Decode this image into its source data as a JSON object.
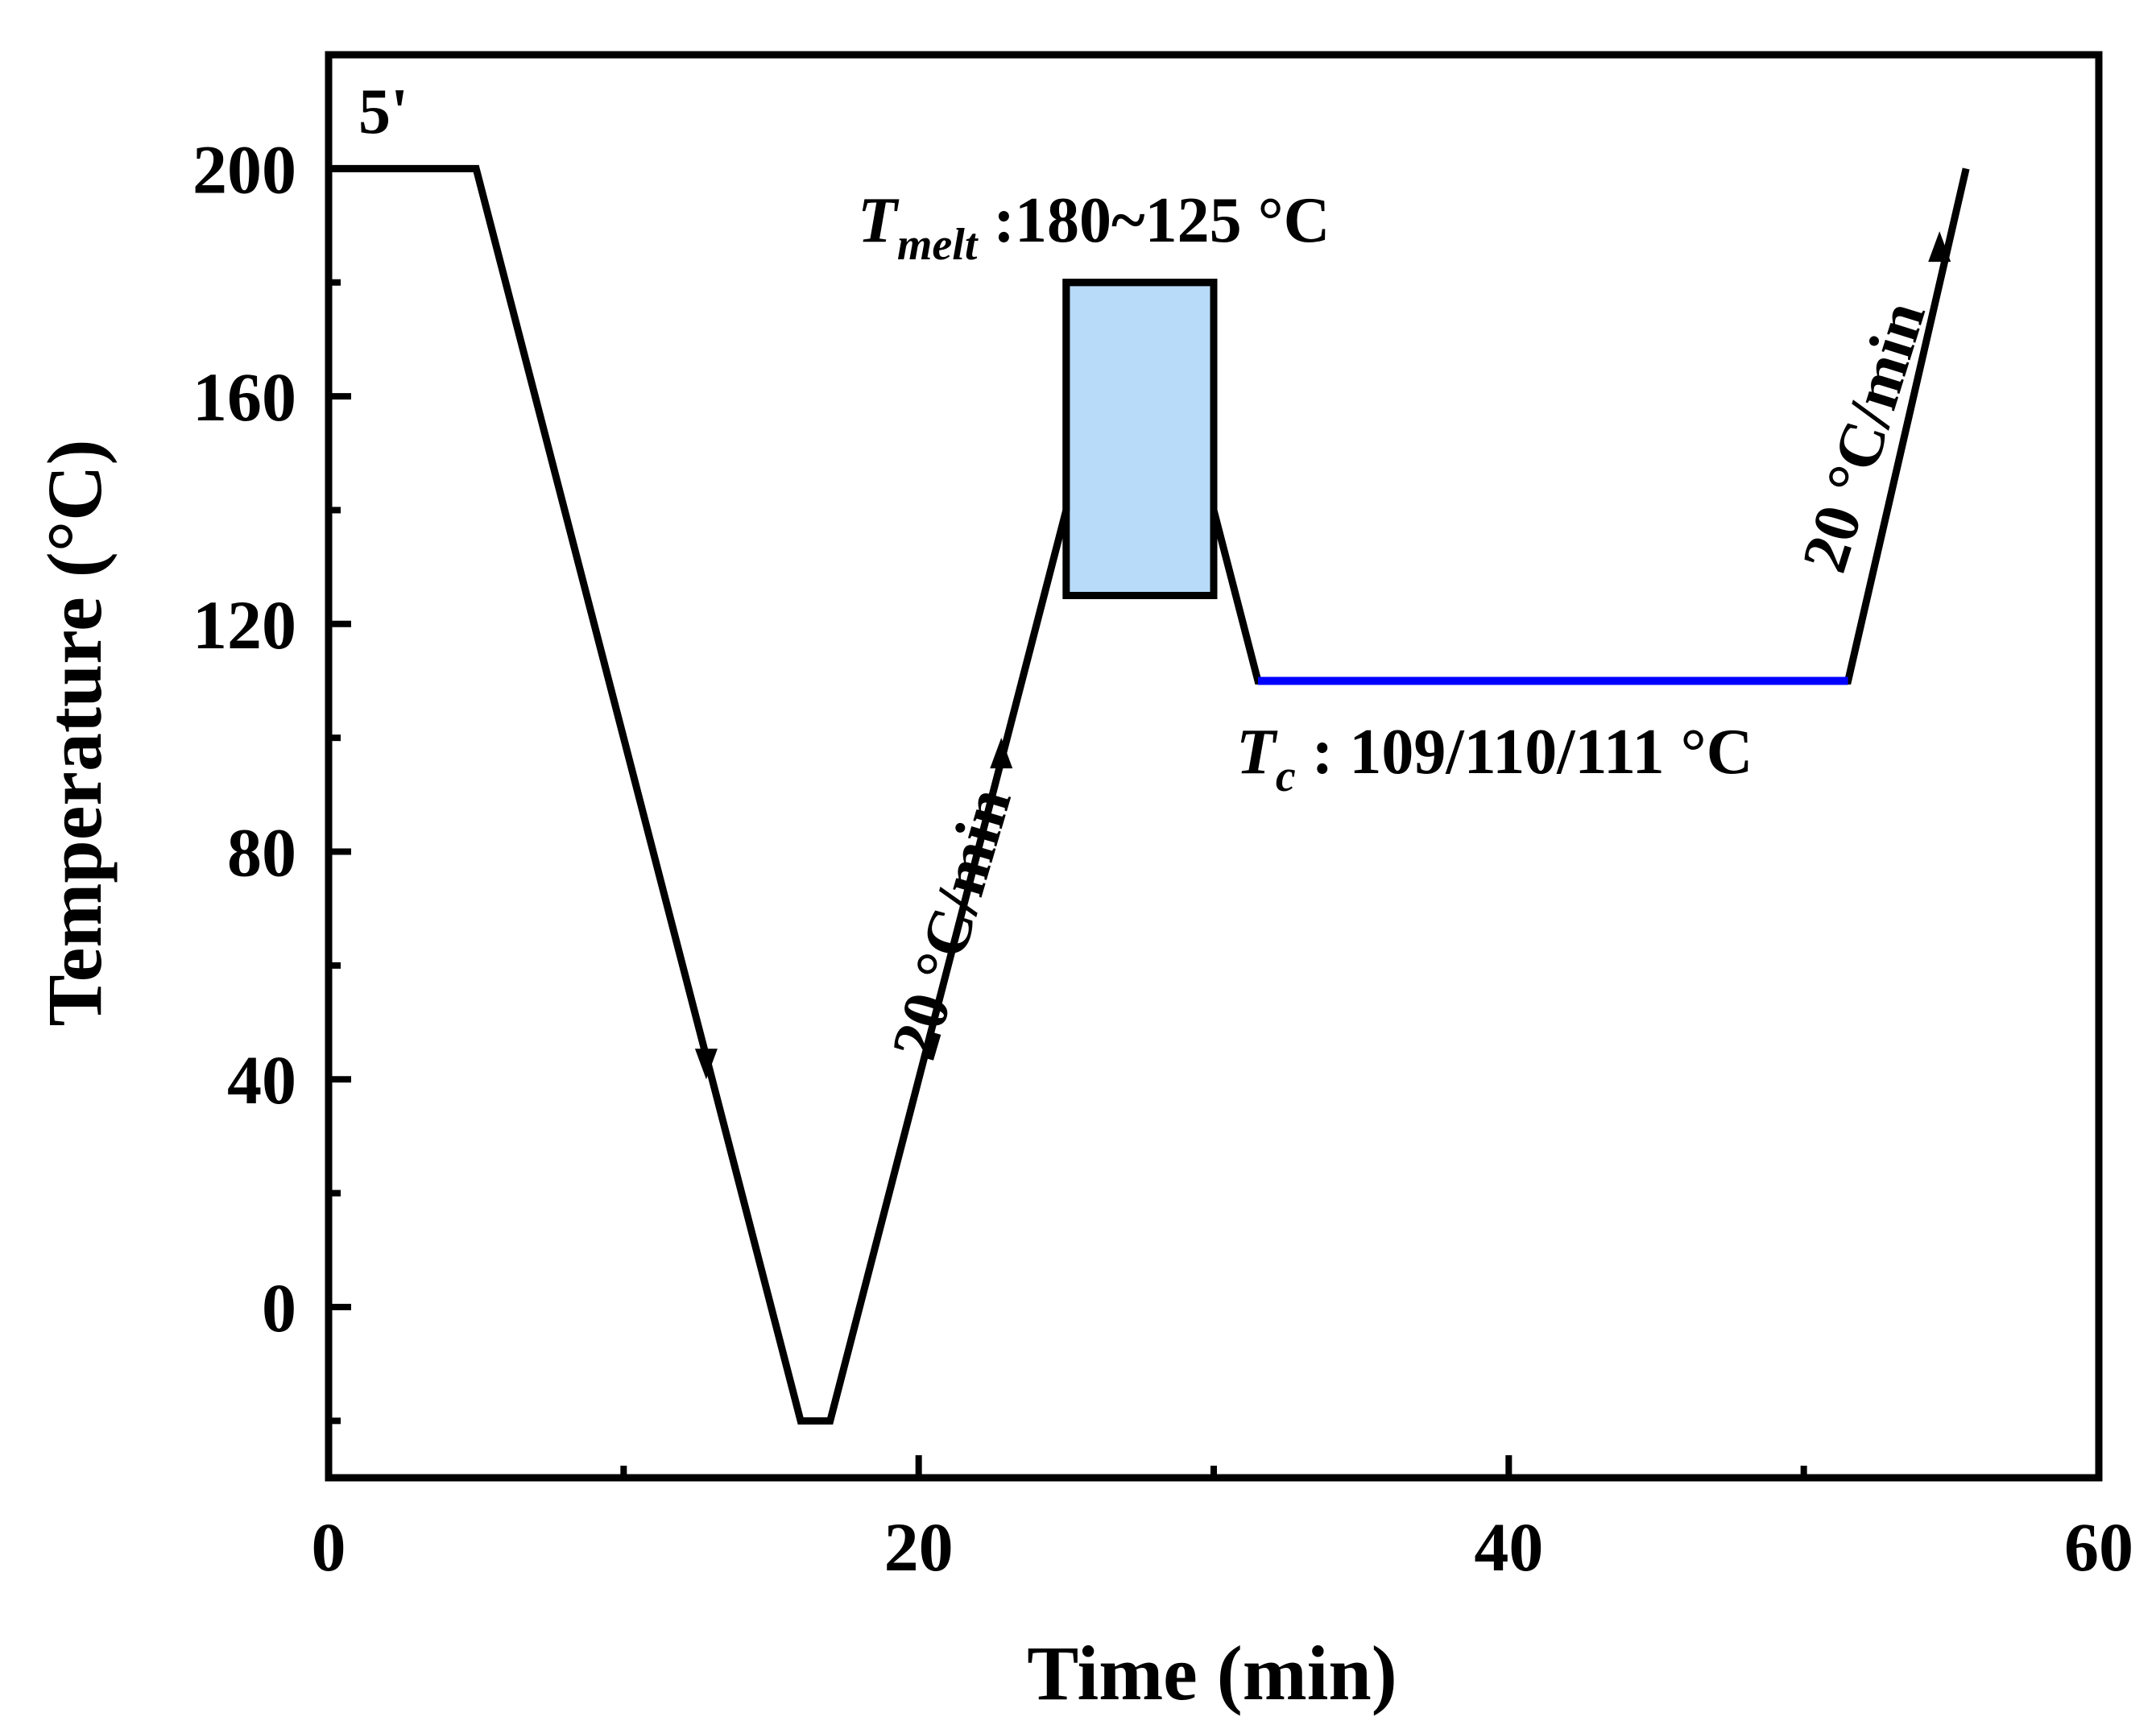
{
  "chart_data": {
    "type": "line",
    "title": "",
    "xlabel": "Time (min)",
    "ylabel": "Temperature (°C)",
    "xlim": [
      0,
      60
    ],
    "ylim": [
      -30,
      220
    ],
    "xticks": [
      0,
      20,
      40,
      60
    ],
    "yticks": [
      0,
      40,
      80,
      120,
      160,
      200
    ],
    "x_minor_ticks": [
      10,
      30,
      50
    ],
    "y_minor_ticks": [
      -20,
      20,
      60,
      100,
      140,
      180
    ],
    "grid": false,
    "legend": "none",
    "series": [
      {
        "color": "#000000",
        "x": [
          0,
          5,
          16,
          17,
          25,
          25,
          30,
          30,
          31.5,
          51.5,
          55.5
        ],
        "y": [
          200,
          200,
          -20,
          -20,
          140,
          180,
          180,
          140,
          110,
          110,
          200
        ]
      },
      {
        "color": "#0000ff",
        "x": [
          31.5,
          51.5
        ],
        "y": [
          110,
          110
        ]
      }
    ],
    "melt_region": {
      "x": [
        25,
        30
      ],
      "y": [
        125,
        180
      ],
      "fill": "#b8dbfa",
      "label_main": "T",
      "label_sub": "melt",
      "label_rest": " :180~125 °C"
    },
    "tc_label": {
      "main": "T",
      "sub": "c",
      "rest": " : 109/110/111 °C"
    },
    "hold_label": "5'",
    "rate_label_1": "20 °C/min",
    "rate_label_2": "20 °C/min",
    "arrows": [
      {
        "x": 12.8,
        "y": 40,
        "dir": "down"
      },
      {
        "x": 22.8,
        "y": 100,
        "dir": "up"
      },
      {
        "x": 54.6,
        "y": 189,
        "dir": "up"
      }
    ]
  }
}
